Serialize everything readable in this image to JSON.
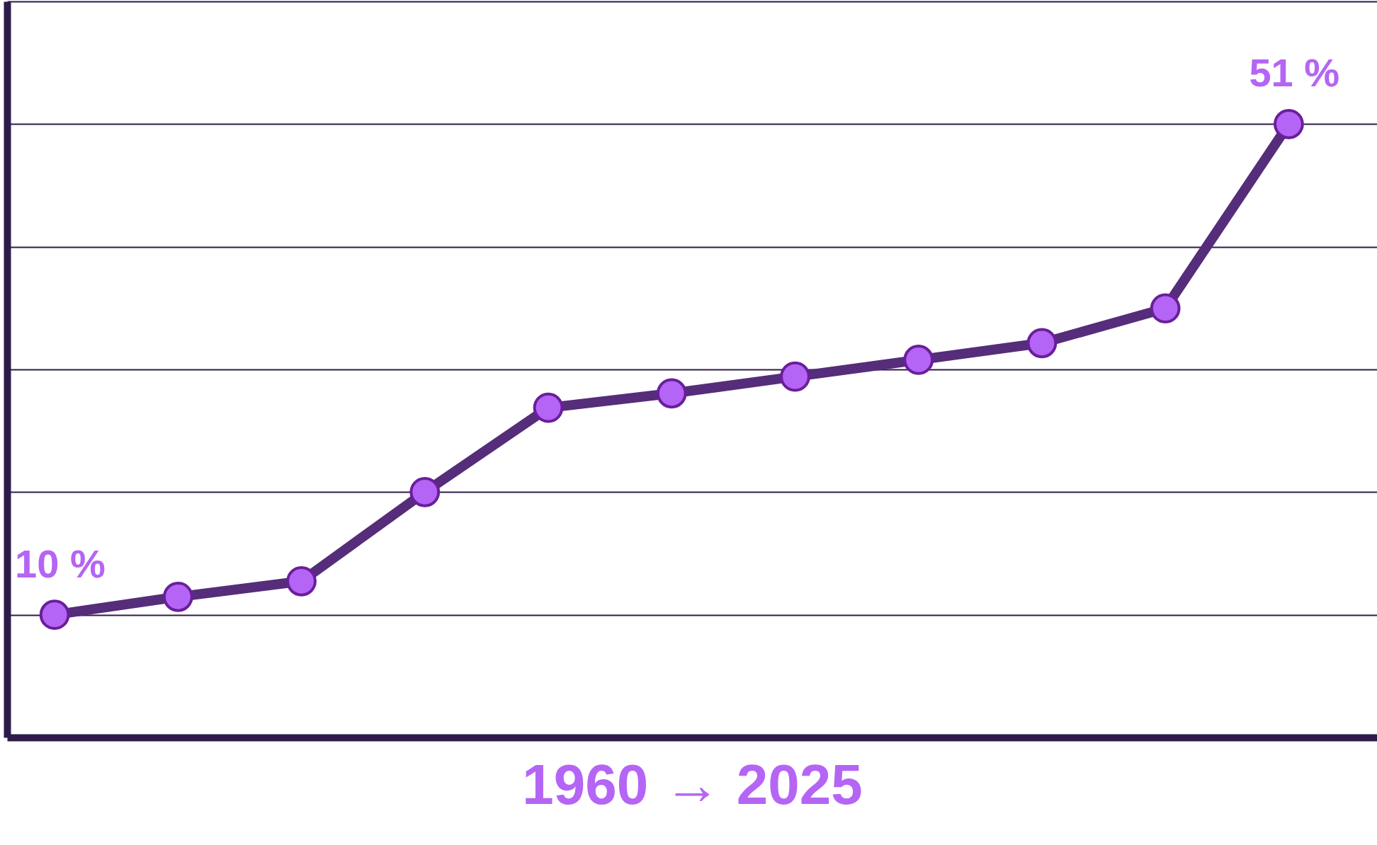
{
  "chart_data": {
    "type": "line",
    "xlabel": "1960 → 2025",
    "categories": [
      null,
      null,
      null,
      null,
      null,
      null,
      null,
      null,
      null,
      null,
      null
    ],
    "series": [
      {
        "color": "#552d7a",
        "values": [
          10,
          11.5,
          12.8,
          20.25,
          27.3,
          28.5,
          29.9,
          31.3,
          32.7,
          35.6,
          51
        ],
        "value_labels": [
          "10 %",
          null,
          null,
          null,
          null,
          null,
          null,
          null,
          null,
          null,
          "51 %"
        ]
      }
    ],
    "ylim": [
      -0.25,
      61.25
    ],
    "yticks": [
      {
        "value": 10,
        "label": null
      },
      {
        "value": 20.25,
        "label": null
      },
      {
        "value": 30.5,
        "label": null
      },
      {
        "value": 40.75,
        "label": null
      },
      {
        "value": 51,
        "label": null
      },
      {
        "value": 61.25,
        "label": null
      }
    ],
    "grid": "y",
    "marker": "circle"
  }
}
